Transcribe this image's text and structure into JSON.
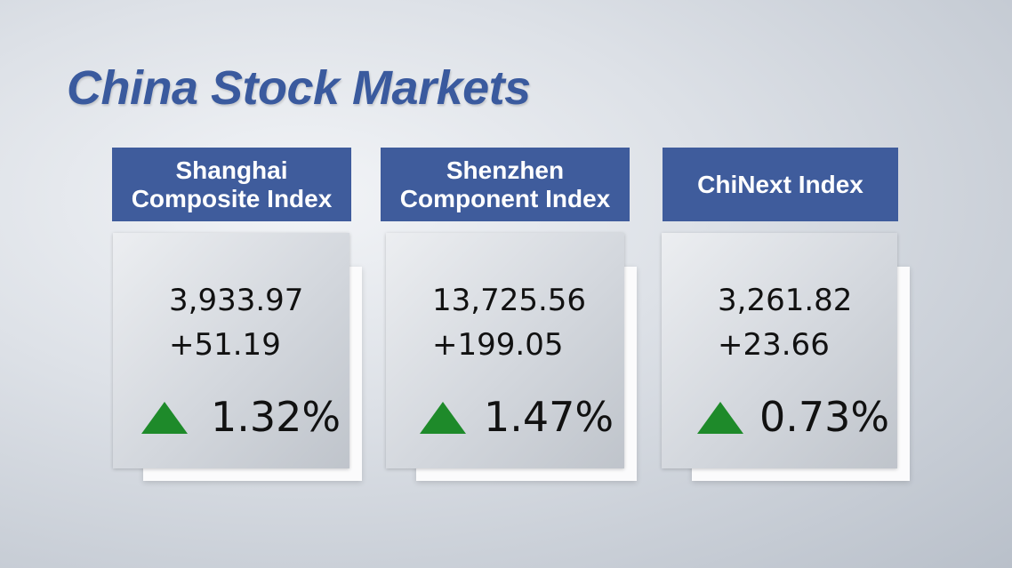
{
  "header": {
    "title": "China Stock Markets"
  },
  "cards": [
    {
      "name_lines": [
        "Shanghai",
        "Composite Index"
      ],
      "value": "3,933.97",
      "change": "+51.19",
      "percent": "1.32%"
    },
    {
      "name_lines": [
        "Shenzhen",
        "Component Index"
      ],
      "value": "13,725.56",
      "change": "+199.05",
      "percent": "1.47%"
    },
    {
      "name_lines": [
        "ChiNext Index"
      ],
      "value": "3,261.82",
      "change": "+23.66",
      "percent": "0.73%"
    }
  ]
}
